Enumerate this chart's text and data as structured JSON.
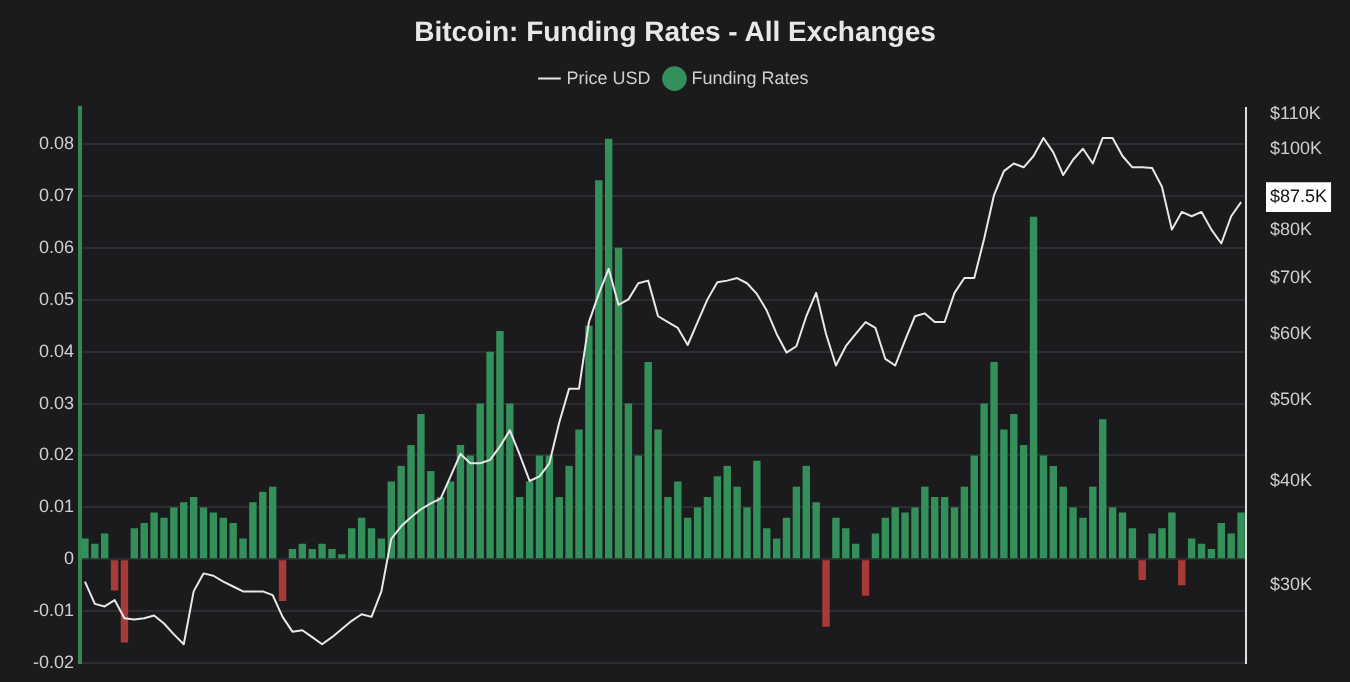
{
  "chart_data": {
    "type": "bar",
    "title": "Bitcoin: Funding Rates - All Exchanges",
    "legend": "top",
    "grid": "y",
    "log": "y2",
    "categories": [
      null,
      null,
      null,
      null,
      null,
      null,
      null,
      null,
      null,
      null,
      null,
      null,
      null,
      null,
      null,
      null,
      null,
      null,
      null,
      null,
      null,
      null,
      null,
      null,
      null,
      null,
      null,
      null,
      null,
      null,
      null,
      null,
      null,
      null,
      null,
      null,
      null,
      null,
      null,
      null,
      null,
      null,
      null,
      null,
      null,
      null,
      null,
      null,
      null,
      null,
      null,
      null,
      null,
      null,
      null,
      null,
      null,
      null,
      null,
      null,
      null,
      null,
      null,
      null,
      null,
      null,
      null,
      null,
      null,
      null,
      null,
      null,
      null,
      null,
      null,
      null,
      null,
      null,
      null,
      null,
      null,
      null,
      null,
      null,
      null,
      null,
      null,
      null,
      null,
      null,
      null,
      null,
      null,
      null,
      null,
      null,
      null,
      null,
      null,
      null,
      null,
      null,
      null,
      null,
      null,
      null,
      null,
      null,
      null,
      null,
      null,
      null,
      null,
      null,
      null,
      null,
      null,
      null
    ],
    "ylim": [
      -0.02,
      0.087
    ],
    "yticks": [
      -0.02,
      -0.01,
      0,
      0.01,
      0.02,
      0.03,
      0.04,
      0.05,
      0.06,
      0.07,
      0.08
    ],
    "y2lim": [
      24200,
      112000
    ],
    "y2ticks": [
      {
        "value": 30000,
        "label": "$30K"
      },
      {
        "value": 40000,
        "label": "$40K"
      },
      {
        "value": 50000,
        "label": "$50K"
      },
      {
        "value": 60000,
        "label": "$60K"
      },
      {
        "value": 70000,
        "label": "$70K"
      },
      {
        "value": 80000,
        "label": "$80K"
      },
      {
        "value": 87500,
        "label": "$87.5K"
      },
      {
        "value": 100000,
        "label": "$100K"
      },
      {
        "value": 110000,
        "label": "$110K"
      }
    ],
    "series": [
      {
        "name": "Price USD",
        "type": "line",
        "axis": "y2",
        "color": "#e8e8e8",
        "values": [
          30300,
          28500,
          28300,
          28800,
          27400,
          27300,
          27400,
          27600,
          27000,
          26200,
          25500,
          29500,
          31000,
          30800,
          30300,
          29900,
          29500,
          29500,
          29500,
          29200,
          27500,
          26400,
          26500,
          26000,
          25500,
          26000,
          26600,
          27200,
          27700,
          27500,
          29500,
          34100,
          35300,
          36200,
          37000,
          37600,
          38100,
          40500,
          43100,
          42000,
          42000,
          42400,
          44000,
          46000,
          43000,
          40000,
          40500,
          42000,
          47000,
          51600,
          51600,
          62000,
          67000,
          71800,
          65000,
          66000,
          69000,
          69500,
          63000,
          62000,
          61000,
          58200,
          62000,
          66000,
          69200,
          69500,
          70000,
          69000,
          67000,
          64000,
          60000,
          57000,
          58000,
          63000,
          67200,
          60000,
          55000,
          58000,
          60000,
          62000,
          61000,
          56000,
          55000,
          59000,
          63000,
          63500,
          62000,
          62000,
          67200,
          70000,
          70000,
          78000,
          88000,
          94000,
          96000,
          95000,
          98000,
          103000,
          99000,
          93000,
          97000,
          100000,
          96000,
          103000,
          103000,
          98000,
          95000,
          95000,
          94800,
          90000,
          80000,
          84000,
          83000,
          84000,
          80000,
          77000,
          83000,
          86300
        ]
      },
      {
        "name": "Funding Rates",
        "color": "#34905a",
        "values": [
          0.004,
          0.003,
          0.005,
          -0.006,
          -0.016,
          0.006,
          0.007,
          0.009,
          0.008,
          0.01,
          0.011,
          0.012,
          0.01,
          0.009,
          0.008,
          0.007,
          0.004,
          0.011,
          0.013,
          0.014,
          -0.008,
          0.002,
          0.003,
          0.002,
          0.003,
          0.002,
          0.001,
          0.006,
          0.008,
          0.006,
          0.004,
          0.015,
          0.018,
          0.022,
          0.028,
          0.017,
          0.012,
          0.015,
          0.022,
          0.02,
          0.03,
          0.04,
          0.044,
          0.03,
          0.012,
          0.015,
          0.02,
          0.02,
          0.012,
          0.018,
          0.025,
          0.045,
          0.073,
          0.081,
          0.06,
          0.03,
          0.02,
          0.038,
          0.025,
          0.012,
          0.015,
          0.008,
          0.01,
          0.012,
          0.016,
          0.018,
          0.014,
          0.01,
          0.019,
          0.006,
          0.004,
          0.008,
          0.014,
          0.018,
          0.011,
          -0.013,
          0.008,
          0.006,
          0.003,
          -0.007,
          0.005,
          0.008,
          0.01,
          0.009,
          0.01,
          0.014,
          0.012,
          0.012,
          0.01,
          0.014,
          0.02,
          0.03,
          0.038,
          0.025,
          0.028,
          0.022,
          0.066,
          0.02,
          0.018,
          0.014,
          0.01,
          0.008,
          0.014,
          0.027,
          0.01,
          0.009,
          0.006,
          -0.004,
          0.005,
          0.006,
          0.009,
          -0.005,
          0.004,
          0.003,
          0.002,
          0.007,
          0.005,
          0.009
        ],
        "colors": [
          "#34905a",
          "#34905a",
          "#34905a",
          "#a83a3a",
          "#a83a3a",
          "#34905a",
          "#34905a",
          "#34905a",
          "#34905a",
          "#34905a",
          "#34905a",
          "#34905a",
          "#34905a",
          "#34905a",
          "#34905a",
          "#34905a",
          "#34905a",
          "#34905a",
          "#34905a",
          "#34905a",
          "#a83a3a",
          "#34905a",
          "#34905a",
          "#34905a",
          "#34905a",
          "#34905a",
          "#34905a",
          "#34905a",
          "#34905a",
          "#34905a",
          "#34905a",
          "#34905a",
          "#34905a",
          "#34905a",
          "#34905a",
          "#34905a",
          "#34905a",
          "#34905a",
          "#34905a",
          "#34905a",
          "#34905a",
          "#34905a",
          "#34905a",
          "#34905a",
          "#34905a",
          "#34905a",
          "#34905a",
          "#34905a",
          "#34905a",
          "#34905a",
          "#34905a",
          "#34905a",
          "#34905a",
          "#34905a",
          "#34905a",
          "#34905a",
          "#34905a",
          "#34905a",
          "#34905a",
          "#34905a",
          "#34905a",
          "#34905a",
          "#34905a",
          "#34905a",
          "#34905a",
          "#34905a",
          "#34905a",
          "#34905a",
          "#34905a",
          "#34905a",
          "#34905a",
          "#34905a",
          "#34905a",
          "#34905a",
          "#34905a",
          "#a83a3a",
          "#34905a",
          "#34905a",
          "#34905a",
          "#a83a3a",
          "#34905a",
          "#34905a",
          "#34905a",
          "#34905a",
          "#34905a",
          "#34905a",
          "#34905a",
          "#34905a",
          "#34905a",
          "#34905a",
          "#34905a",
          "#34905a",
          "#34905a",
          "#34905a",
          "#34905a",
          "#34905a",
          "#34905a",
          "#34905a",
          "#34905a",
          "#34905a",
          "#34905a",
          "#34905a",
          "#34905a",
          "#34905a",
          "#34905a",
          "#34905a",
          "#34905a",
          "#a83a3a",
          "#34905a",
          "#34905a",
          "#34905a",
          "#a83a3a",
          "#34905a",
          "#34905a",
          "#34905a",
          "#34905a",
          "#34905a",
          "#34905a"
        ]
      }
    ]
  }
}
